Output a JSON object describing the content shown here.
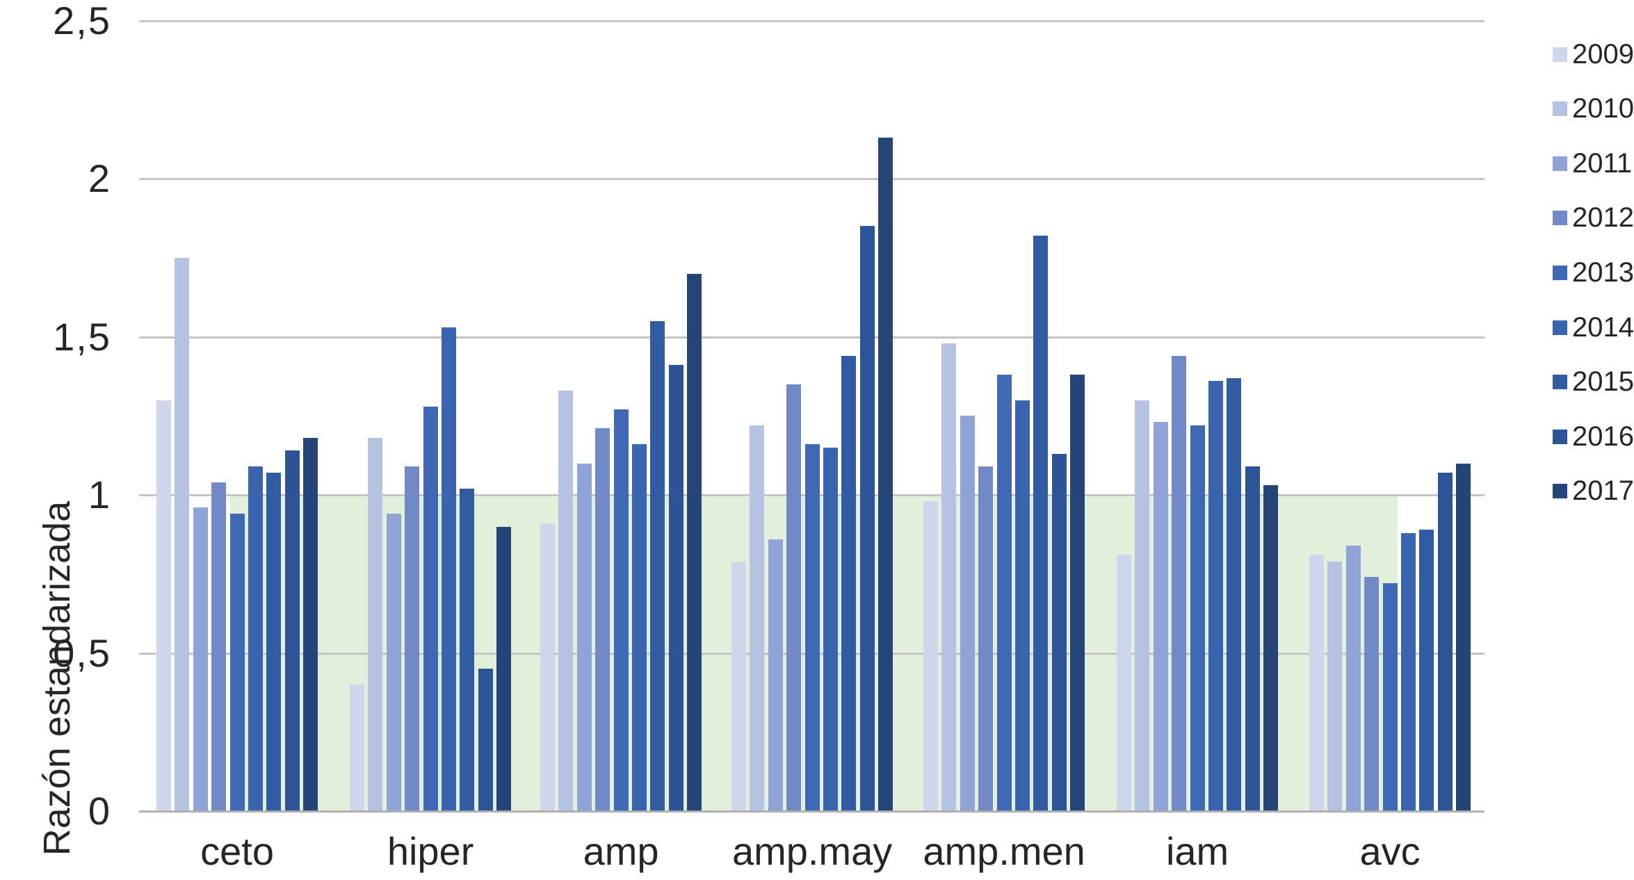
{
  "chart_data": {
    "type": "bar",
    "title": "",
    "xlabel": "",
    "ylabel": "Razón estandarizada",
    "categories": [
      "ceto",
      "hiper",
      "amp",
      "amp.may",
      "amp.men",
      "iam",
      "avc"
    ],
    "series": [
      {
        "name": "2009",
        "color": "#cdd6ea",
        "values": [
          1.3,
          0.4,
          0.91,
          0.79,
          0.98,
          0.81,
          0.81
        ]
      },
      {
        "name": "2010",
        "color": "#b5c2e2",
        "values": [
          1.75,
          1.18,
          1.33,
          1.22,
          1.48,
          1.3,
          0.79
        ]
      },
      {
        "name": "2011",
        "color": "#8fa3d6",
        "values": [
          0.96,
          0.94,
          1.1,
          0.86,
          1.25,
          1.23,
          0.84
        ]
      },
      {
        "name": "2012",
        "color": "#7289c7",
        "values": [
          1.04,
          1.09,
          1.21,
          1.35,
          1.09,
          1.44,
          0.74
        ]
      },
      {
        "name": "2013",
        "color": "#3f69b5",
        "values": [
          0.94,
          1.28,
          1.27,
          1.16,
          1.38,
          1.22,
          0.72
        ]
      },
      {
        "name": "2014",
        "color": "#3a64af",
        "values": [
          1.09,
          1.53,
          1.16,
          1.15,
          1.3,
          1.36,
          0.88
        ]
      },
      {
        "name": "2015",
        "color": "#315ba3",
        "values": [
          1.07,
          1.02,
          1.55,
          1.44,
          1.82,
          1.37,
          0.89
        ]
      },
      {
        "name": "2016",
        "color": "#2c5496",
        "values": [
          1.14,
          0.45,
          1.41,
          1.85,
          1.13,
          1.09,
          1.07
        ]
      },
      {
        "name": "2017",
        "color": "#254477",
        "values": [
          1.18,
          0.9,
          1.7,
          2.13,
          1.38,
          1.03,
          1.1
        ]
      }
    ],
    "y_ticks": [
      {
        "label": "0",
        "value": 0
      },
      {
        "label": "0,5",
        "value": 0.5
      },
      {
        "label": "1",
        "value": 1
      },
      {
        "label": "1,5",
        "value": 1.5
      },
      {
        "label": "2",
        "value": 2
      },
      {
        "label": "2,5",
        "value": 2.5
      }
    ],
    "ylim": [
      0,
      2.5
    ],
    "grid": true,
    "legend_position": "right",
    "legend_labels": [
      "2009",
      "2010",
      "2011",
      "2012",
      "2013",
      "2014",
      "2015",
      "2016",
      "2017"
    ],
    "highlight_band": {
      "color": "#e2efda",
      "from_value": 0,
      "to_value": 1.0,
      "from_category": "ceto",
      "from_series": "2013",
      "to_category": "avc",
      "to_series": "2013"
    },
    "colors": {
      "gridline": "#c4c4c4",
      "axis_line": "#b0b0b0",
      "text": "#262626",
      "background": "#ffffff"
    }
  }
}
